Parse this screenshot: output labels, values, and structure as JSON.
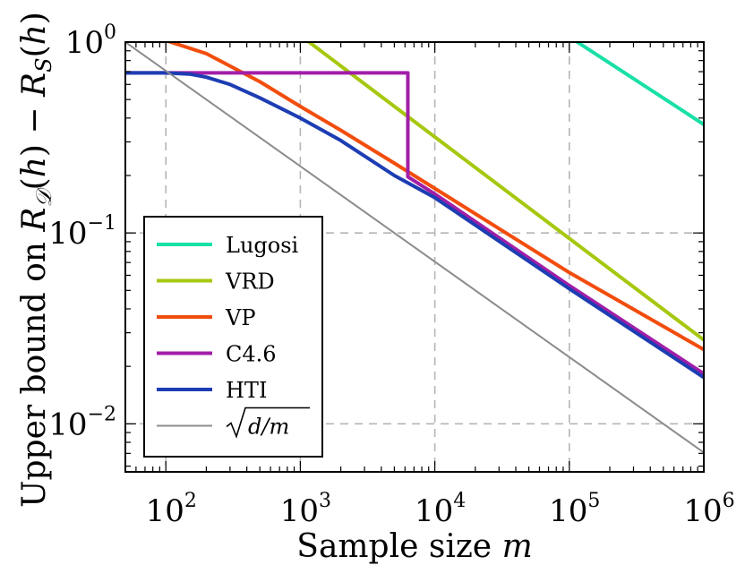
{
  "chart_data": {
    "type": "line",
    "xlabel": "Sample size m",
    "ylabel": "Upper bound on R_D(h) − R_S(h)",
    "x_scale": "log",
    "y_scale": "log",
    "xlim": [
      50,
      1000000
    ],
    "ylim": [
      0.0056,
      1.0
    ],
    "grid": true,
    "legend_position": "lower-left",
    "x_ticks": [
      {
        "base": "10",
        "exp": "2",
        "value": 100
      },
      {
        "base": "10",
        "exp": "3",
        "value": 1000
      },
      {
        "base": "10",
        "exp": "4",
        "value": 10000
      },
      {
        "base": "10",
        "exp": "5",
        "value": 100000
      },
      {
        "base": "10",
        "exp": "6",
        "value": 1000000
      }
    ],
    "y_ticks": [
      {
        "base": "10",
        "exp": "0",
        "value": 1.0
      },
      {
        "base": "10",
        "exp": "−1",
        "value": 0.1
      },
      {
        "base": "10",
        "exp": "−2",
        "value": 0.01
      }
    ],
    "series": [
      {
        "name": "Lugosi",
        "color": "#19e0a6",
        "x": [
          110000,
          1000000
        ],
        "y": [
          1.02,
          0.37
        ]
      },
      {
        "name": "VRD",
        "color": "#a5c80f",
        "x": [
          1120,
          1000000
        ],
        "y": [
          1.02,
          0.0275
        ]
      },
      {
        "name": "VP",
        "color": "#f24d0d",
        "x": [
          100,
          200,
          500,
          1000,
          2000,
          5000,
          10000,
          100000,
          1000000
        ],
        "y": [
          1.02,
          0.87,
          0.62,
          0.46,
          0.345,
          0.232,
          0.171,
          0.062,
          0.0245
        ]
      },
      {
        "name": "C4.6",
        "color": "#a21ea8",
        "x": [
          50,
          6300,
          6300,
          10000,
          100000,
          1000000
        ],
        "y": [
          0.69,
          0.69,
          0.197,
          0.16,
          0.053,
          0.0183
        ]
      },
      {
        "name": "HTI",
        "color": "#1d3db3",
        "x": [
          50,
          100,
          150,
          200,
          300,
          500,
          1000,
          2000,
          5000,
          10000,
          100000,
          1000000
        ],
        "y": [
          0.69,
          0.69,
          0.68,
          0.655,
          0.6,
          0.51,
          0.4,
          0.305,
          0.2,
          0.153,
          0.051,
          0.0175
        ]
      },
      {
        "name": "√(d/m)",
        "color": "#8c8c8c",
        "x": [
          50,
          1000000
        ],
        "y": [
          1.0,
          0.00707
        ]
      }
    ]
  }
}
